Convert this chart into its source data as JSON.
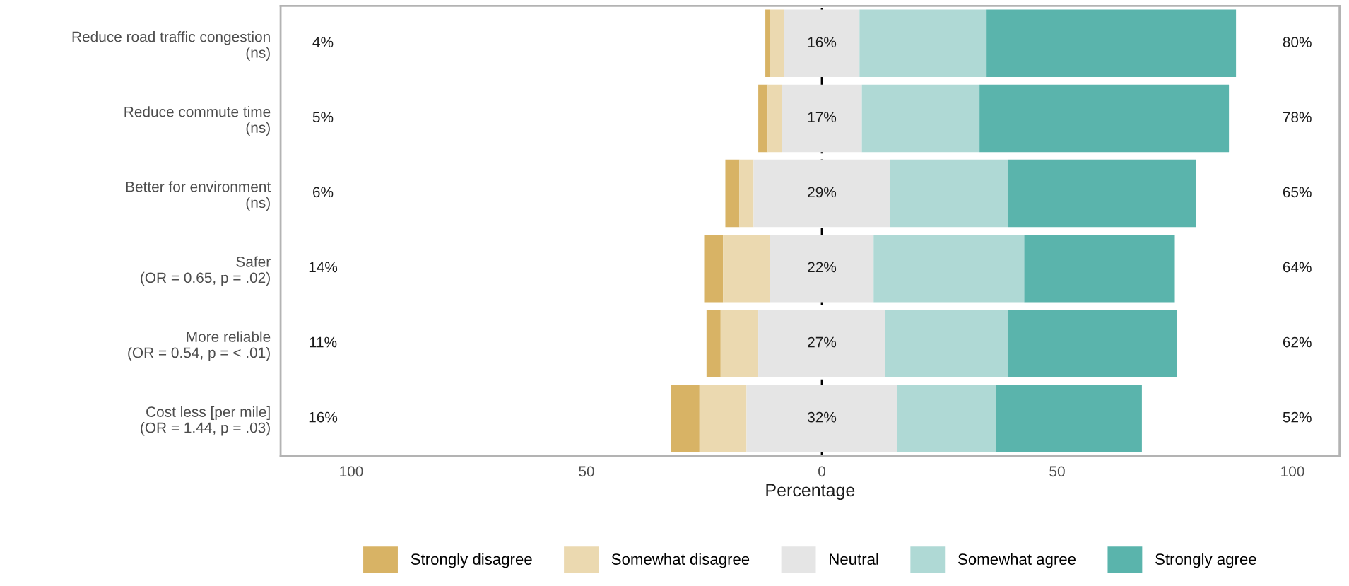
{
  "chart_data": {
    "type": "bar",
    "orientation": "horizontal",
    "stacked": true,
    "xlabel": "Percentage",
    "categories": [
      "Reduce road traffic congestion\n(ns)",
      "Reduce commute time\n(ns)",
      "Better for environment\n(ns)",
      "Safer\n(OR = 0.65, p = .02)",
      "More reliable\n(OR = 0.54, p = < .01)",
      "Cost less [per mile]\n(OR = 1.44, p = .03)"
    ],
    "series": [
      {
        "name": "Strongly disagree",
        "color": "#d8b365",
        "values": [
          1,
          2,
          3,
          4,
          3,
          6
        ],
        "base": [
          -12,
          -13.5,
          -20.5,
          -25,
          -24.5,
          -32
        ]
      },
      {
        "name": "Somewhat disagree",
        "color": "#ebd9b0",
        "values": [
          3,
          3,
          3,
          10,
          8,
          10
        ],
        "base": [
          -11,
          -11.5,
          -17.5,
          -21,
          -21.5,
          -26
        ]
      },
      {
        "name": "Neutral",
        "color": "#e5e5e5",
        "values": [
          16,
          17,
          29,
          22,
          27,
          32
        ],
        "base": [
          -8,
          -8.5,
          -14.5,
          -11,
          -13.5,
          -16
        ],
        "value_labels": [
          "16%",
          "17%",
          "29%",
          "22%",
          "27%",
          "32%"
        ]
      },
      {
        "name": "Somewhat agree",
        "color": "#afd9d5",
        "values": [
          27,
          25,
          25,
          32,
          26,
          21
        ],
        "base": [
          8,
          8.5,
          14.5,
          11,
          13.5,
          16
        ]
      },
      {
        "name": "Strongly agree",
        "color": "#5ab4ac",
        "values": [
          53,
          53,
          40,
          32,
          36,
          31
        ],
        "base": [
          35,
          33.5,
          39.5,
          43,
          39.5,
          37
        ]
      }
    ],
    "xlim": [
      -115,
      110
    ],
    "xticks": [
      {
        "value": -100,
        "label": "100"
      },
      {
        "value": -50,
        "label": "50"
      },
      0,
      50,
      100
    ],
    "ref_lines": [
      {
        "axis": "x",
        "value": 0,
        "color": "#000000",
        "line_style": "dashed"
      }
    ],
    "annotations": [
      "4%",
      "5%",
      "6%",
      "14%",
      "11%",
      "16%",
      "80%",
      "78%",
      "65%",
      "64%",
      "62%",
      "52%"
    ],
    "grid": false,
    "legend": "bottom"
  }
}
